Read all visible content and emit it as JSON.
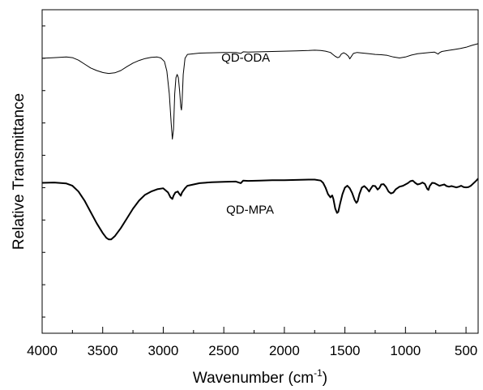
{
  "chart_data": {
    "type": "line",
    "title": "",
    "xlabel": "Wavenumber (cm",
    "xlabel_sup": "-1",
    "xlabel_close": ")",
    "ylabel": "Relative Transmittance",
    "xlim": [
      4000,
      400
    ],
    "x_reversed": true,
    "ylim": [
      0,
      100
    ],
    "y_ticklabels_shown": false,
    "grid": false,
    "xticks": [
      4000,
      3500,
      3000,
      2500,
      2000,
      1500,
      1000,
      500
    ],
    "xtick_labels": [
      "4000",
      "3500",
      "3000",
      "2500",
      "2000",
      "1500",
      "1000",
      "500"
    ],
    "minor_xtick_step": 250,
    "y_minor_ticks": [
      5,
      15,
      25,
      35,
      45,
      55,
      65,
      75,
      85,
      95
    ],
    "series": [
      {
        "name": "QD-ODA",
        "color": "#000000",
        "stroke": "thin",
        "label_at": [
          2520,
          84
        ],
        "points": [
          [
            4000,
            85
          ],
          [
            3900,
            85.2
          ],
          [
            3800,
            85.4
          ],
          [
            3750,
            85.2
          ],
          [
            3700,
            84.4
          ],
          [
            3650,
            83.2
          ],
          [
            3600,
            82
          ],
          [
            3550,
            81.2
          ],
          [
            3500,
            80.6
          ],
          [
            3450,
            80.3
          ],
          [
            3400,
            80.5
          ],
          [
            3350,
            81.2
          ],
          [
            3300,
            82.4
          ],
          [
            3250,
            83.5
          ],
          [
            3200,
            84.3
          ],
          [
            3150,
            84.9
          ],
          [
            3100,
            85.3
          ],
          [
            3050,
            85.4
          ],
          [
            3020,
            85.1
          ],
          [
            2990,
            84
          ],
          [
            2970,
            81
          ],
          [
            2950,
            74
          ],
          [
            2935,
            65
          ],
          [
            2925,
            60
          ],
          [
            2915,
            63
          ],
          [
            2905,
            74
          ],
          [
            2895,
            79
          ],
          [
            2885,
            80
          ],
          [
            2875,
            79
          ],
          [
            2865,
            75
          ],
          [
            2855,
            70
          ],
          [
            2850,
            69
          ],
          [
            2845,
            71
          ],
          [
            2835,
            80
          ],
          [
            2820,
            85
          ],
          [
            2800,
            86.2
          ],
          [
            2700,
            86.6
          ],
          [
            2600,
            86.7
          ],
          [
            2500,
            86.8
          ],
          [
            2400,
            86.8
          ],
          [
            2360,
            86.5
          ],
          [
            2340,
            87
          ],
          [
            2300,
            86.9
          ],
          [
            2200,
            87
          ],
          [
            2100,
            87.1
          ],
          [
            2000,
            87.2
          ],
          [
            1900,
            87.3
          ],
          [
            1800,
            87.4
          ],
          [
            1750,
            87.5
          ],
          [
            1700,
            87.4
          ],
          [
            1660,
            87.2
          ],
          [
            1620,
            86.8
          ],
          [
            1600,
            86.2
          ],
          [
            1580,
            85.6
          ],
          [
            1560,
            85.2
          ],
          [
            1545,
            85.4
          ],
          [
            1530,
            86.3
          ],
          [
            1510,
            86.7
          ],
          [
            1490,
            86.3
          ],
          [
            1470,
            85.6
          ],
          [
            1460,
            84.8
          ],
          [
            1450,
            85.4
          ],
          [
            1430,
            86.5
          ],
          [
            1400,
            86.8
          ],
          [
            1350,
            86.6
          ],
          [
            1300,
            86.4
          ],
          [
            1250,
            86.2
          ],
          [
            1200,
            86.1
          ],
          [
            1150,
            85.9
          ],
          [
            1100,
            85.4
          ],
          [
            1050,
            85.1
          ],
          [
            1000,
            85.4
          ],
          [
            950,
            86
          ],
          [
            900,
            86.4
          ],
          [
            850,
            86.6
          ],
          [
            800,
            86.8
          ],
          [
            760,
            86.9
          ],
          [
            730,
            86.3
          ],
          [
            720,
            86.7
          ],
          [
            700,
            87.1
          ],
          [
            650,
            87.4
          ],
          [
            600,
            87.7
          ],
          [
            550,
            88
          ],
          [
            500,
            88.4
          ],
          [
            450,
            89
          ],
          [
            400,
            89.5
          ]
        ]
      },
      {
        "name": "QD-MPA",
        "color": "#000000",
        "stroke": "thick",
        "label_at": [
          2480,
          37
        ],
        "points": [
          [
            4000,
            46.5
          ],
          [
            3900,
            46.6
          ],
          [
            3800,
            46.3
          ],
          [
            3750,
            45.6
          ],
          [
            3700,
            43.8
          ],
          [
            3650,
            41
          ],
          [
            3600,
            37.5
          ],
          [
            3550,
            34
          ],
          [
            3500,
            31
          ],
          [
            3470,
            29.5
          ],
          [
            3450,
            29
          ],
          [
            3430,
            29
          ],
          [
            3400,
            30
          ],
          [
            3350,
            32.5
          ],
          [
            3300,
            35.5
          ],
          [
            3250,
            38.5
          ],
          [
            3200,
            41
          ],
          [
            3150,
            42.8
          ],
          [
            3100,
            43.8
          ],
          [
            3050,
            44.5
          ],
          [
            3000,
            44.8
          ],
          [
            2960,
            43.5
          ],
          [
            2940,
            42
          ],
          [
            2925,
            41.5
          ],
          [
            2915,
            42.5
          ],
          [
            2900,
            43.5
          ],
          [
            2880,
            43.8
          ],
          [
            2870,
            43.2
          ],
          [
            2855,
            42.5
          ],
          [
            2845,
            43.5
          ],
          [
            2820,
            44.8
          ],
          [
            2800,
            45.6
          ],
          [
            2700,
            46.4
          ],
          [
            2600,
            46.7
          ],
          [
            2500,
            46.8
          ],
          [
            2400,
            46.9
          ],
          [
            2360,
            46.4
          ],
          [
            2340,
            47.2
          ],
          [
            2300,
            47.1
          ],
          [
            2200,
            47.2
          ],
          [
            2100,
            47.3
          ],
          [
            2000,
            47.3
          ],
          [
            1900,
            47.4
          ],
          [
            1800,
            47.5
          ],
          [
            1750,
            47.5
          ],
          [
            1700,
            47.2
          ],
          [
            1680,
            46.5
          ],
          [
            1660,
            45
          ],
          [
            1640,
            43
          ],
          [
            1620,
            42
          ],
          [
            1605,
            42.6
          ],
          [
            1595,
            41.5
          ],
          [
            1580,
            38.5
          ],
          [
            1565,
            37.2
          ],
          [
            1555,
            37.5
          ],
          [
            1540,
            40
          ],
          [
            1520,
            43
          ],
          [
            1500,
            45
          ],
          [
            1480,
            45.6
          ],
          [
            1460,
            44.8
          ],
          [
            1440,
            43.3
          ],
          [
            1420,
            41.2
          ],
          [
            1405,
            40.3
          ],
          [
            1395,
            40.8
          ],
          [
            1380,
            43
          ],
          [
            1360,
            45
          ],
          [
            1340,
            45.5
          ],
          [
            1320,
            44.8
          ],
          [
            1300,
            43.8
          ],
          [
            1290,
            44.5
          ],
          [
            1270,
            45.6
          ],
          [
            1250,
            45.5
          ],
          [
            1230,
            44.4
          ],
          [
            1215,
            44.9
          ],
          [
            1200,
            46
          ],
          [
            1180,
            46.1
          ],
          [
            1160,
            45.2
          ],
          [
            1140,
            43.8
          ],
          [
            1120,
            43.2
          ],
          [
            1100,
            43.5
          ],
          [
            1080,
            44.5
          ],
          [
            1050,
            45.3
          ],
          [
            1020,
            45.6
          ],
          [
            1000,
            46
          ],
          [
            980,
            46.4
          ],
          [
            960,
            47
          ],
          [
            940,
            47.2
          ],
          [
            920,
            46.5
          ],
          [
            900,
            46
          ],
          [
            880,
            46.2
          ],
          [
            860,
            46.6
          ],
          [
            840,
            46.2
          ],
          [
            820,
            44.6
          ],
          [
            810,
            44.3
          ],
          [
            800,
            45.5
          ],
          [
            780,
            46.5
          ],
          [
            760,
            46.4
          ],
          [
            740,
            46
          ],
          [
            720,
            45.6
          ],
          [
            700,
            45.8
          ],
          [
            680,
            46
          ],
          [
            660,
            45.5
          ],
          [
            640,
            45.3
          ],
          [
            620,
            45.5
          ],
          [
            600,
            45.3
          ],
          [
            580,
            45.1
          ],
          [
            560,
            45.3
          ],
          [
            540,
            45.6
          ],
          [
            520,
            45.2
          ],
          [
            500,
            45.1
          ],
          [
            480,
            45.2
          ],
          [
            460,
            45.6
          ],
          [
            440,
            46.3
          ],
          [
            420,
            47
          ],
          [
            400,
            47.8
          ]
        ]
      }
    ]
  }
}
